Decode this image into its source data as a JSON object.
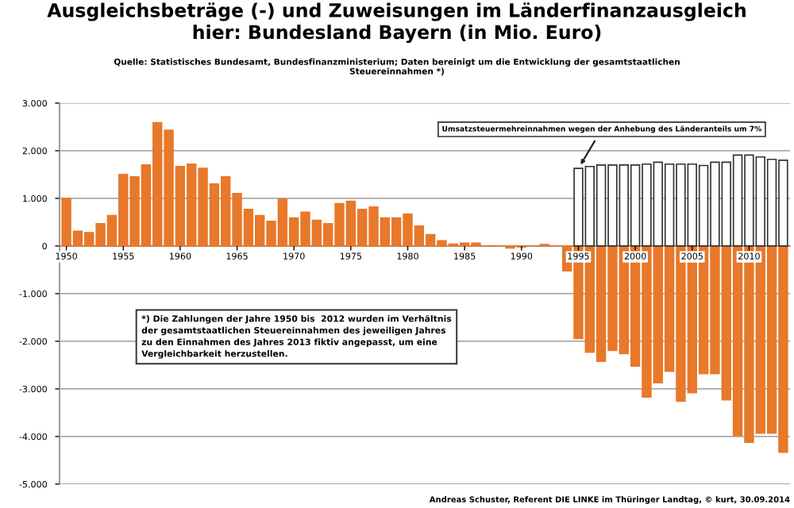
{
  "chart_data": {
    "type": "bar",
    "title": "Ausgleichsbeträge (-) und Zuweisungen im Länderfinanzausgleich\nhier: Bundesland Bayern (in Mio. Euro)",
    "subtitle": "Quelle: Statistisches Bundesamt, Bundesfinanzministerium; Daten bereinigt um die Entwicklung der gesamtstaatlichen\nSteuereinnahmen *)",
    "categories": [
      "1950",
      null,
      null,
      null,
      null,
      "1955",
      null,
      null,
      null,
      null,
      "1960",
      null,
      null,
      null,
      null,
      "1965",
      null,
      null,
      null,
      null,
      "1970",
      null,
      null,
      null,
      null,
      "1975",
      null,
      null,
      null,
      null,
      "1980",
      null,
      null,
      null,
      null,
      "1985",
      null,
      null,
      null,
      null,
      "1990",
      null,
      null,
      null,
      null,
      "1995",
      null,
      null,
      null,
      null,
      "2000",
      null,
      null,
      null,
      null,
      "2005",
      null,
      null,
      null,
      null,
      "2010",
      null,
      null,
      null
    ],
    "series": [
      {
        "color": "#e8782a",
        "values": [
          1000,
          310,
          280,
          470,
          640,
          1500,
          1450,
          1700,
          2590,
          2430,
          1670,
          1720,
          1630,
          1300,
          1450,
          1100,
          770,
          640,
          520,
          980,
          590,
          710,
          540,
          470,
          890,
          940,
          770,
          820,
          590,
          590,
          670,
          420,
          240,
          110,
          40,
          60,
          60,
          0,
          0,
          -40,
          -20,
          0,
          30,
          0,
          -520,
          -1940,
          -2230,
          -2420,
          -2190,
          -2260,
          -2520,
          -3170,
          -2870,
          -2630,
          -3260,
          -3080,
          -2680,
          -2680,
          -3230,
          -3980,
          -4120,
          -3930,
          -3930,
          -4330
        ]
      },
      {
        "color": "#ffffff",
        "values": [
          null,
          null,
          null,
          null,
          null,
          null,
          null,
          null,
          null,
          null,
          null,
          null,
          null,
          null,
          null,
          null,
          null,
          null,
          null,
          null,
          null,
          null,
          null,
          null,
          null,
          null,
          null,
          null,
          null,
          null,
          null,
          null,
          null,
          null,
          null,
          null,
          null,
          null,
          null,
          null,
          null,
          null,
          null,
          null,
          null,
          1630,
          1670,
          1700,
          1700,
          1700,
          1700,
          1720,
          1760,
          1720,
          1720,
          1720,
          1690,
          1760,
          1760,
          1910,
          1910,
          1870,
          1820,
          1800
        ]
      }
    ],
    "ylim": [
      -5000,
      3000
    ],
    "yticks": [
      {
        "value": -5000,
        "label": "-5.000"
      },
      {
        "value": -4000,
        "label": "-4.000"
      },
      {
        "value": -3000,
        "label": "-3.000"
      },
      {
        "value": -2000,
        "label": "-2.000"
      },
      {
        "value": -1000,
        "label": "-1.000"
      },
      0,
      {
        "value": 1000,
        "label": "1.000"
      },
      {
        "value": 2000,
        "label": "2.000"
      },
      {
        "value": 3000,
        "label": "3.000"
      }
    ],
    "grid": "y",
    "annotations": [
      {
        "text": "Umsatzsteuermehreinnahmen wegen der Anhebung des Länderanteils um 7%",
        "x": "1995",
        "y": 1630
      },
      "*) Die Zahlungen der Jahre 1950 bis  2012 wurden im Verhältnis\nder gesamtstaatlichen Steuereinnahmen des jeweiligen Jahres\nzu den Einnahmen des Jahres 2013 fiktiv angepasst, um eine\nVergleichbarkeit herzustellen.",
      "Andreas Schuster, Referent DIE LINKE im Thüringer Landtag, © kurt, 30.09.2014"
    ]
  }
}
